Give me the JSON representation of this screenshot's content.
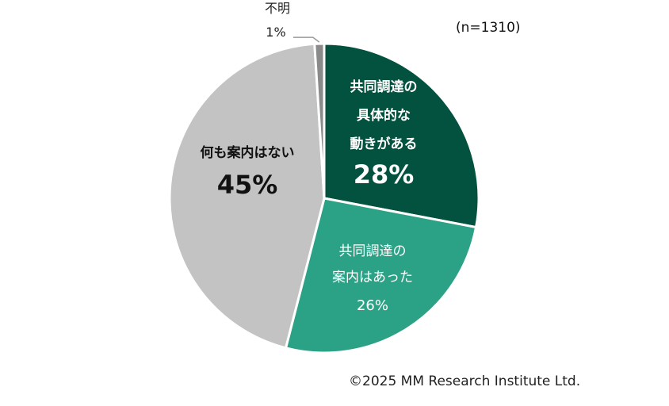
{
  "sample_size": "(n=1310)",
  "copyright": "©2025 MM Research Institute Ltd.",
  "chart_data": {
    "type": "pie",
    "slices": [
      {
        "label_lines": [
          "共同調達の",
          "具体的な",
          "動きがある"
        ],
        "value_label": "28%",
        "value": 28,
        "color": "#03513F",
        "text_color": "#ffffff",
        "bold": true
      },
      {
        "label_lines": [
          "共同調達の",
          "案内はあった"
        ],
        "value_label": "26%",
        "value": 26,
        "color": "#2BA285",
        "text_color": "#ffffff",
        "bold": false
      },
      {
        "label_lines": [
          "何も案内はない"
        ],
        "value_label": "45%",
        "value": 45,
        "color": "#C3C3C3",
        "text_color": "#111111",
        "bold": true
      },
      {
        "label_lines": [
          "不明"
        ],
        "value_label": "1%",
        "value": 1,
        "color": "#8A8A8A",
        "text_color": "#222222",
        "bold": false,
        "outside": true
      }
    ]
  }
}
